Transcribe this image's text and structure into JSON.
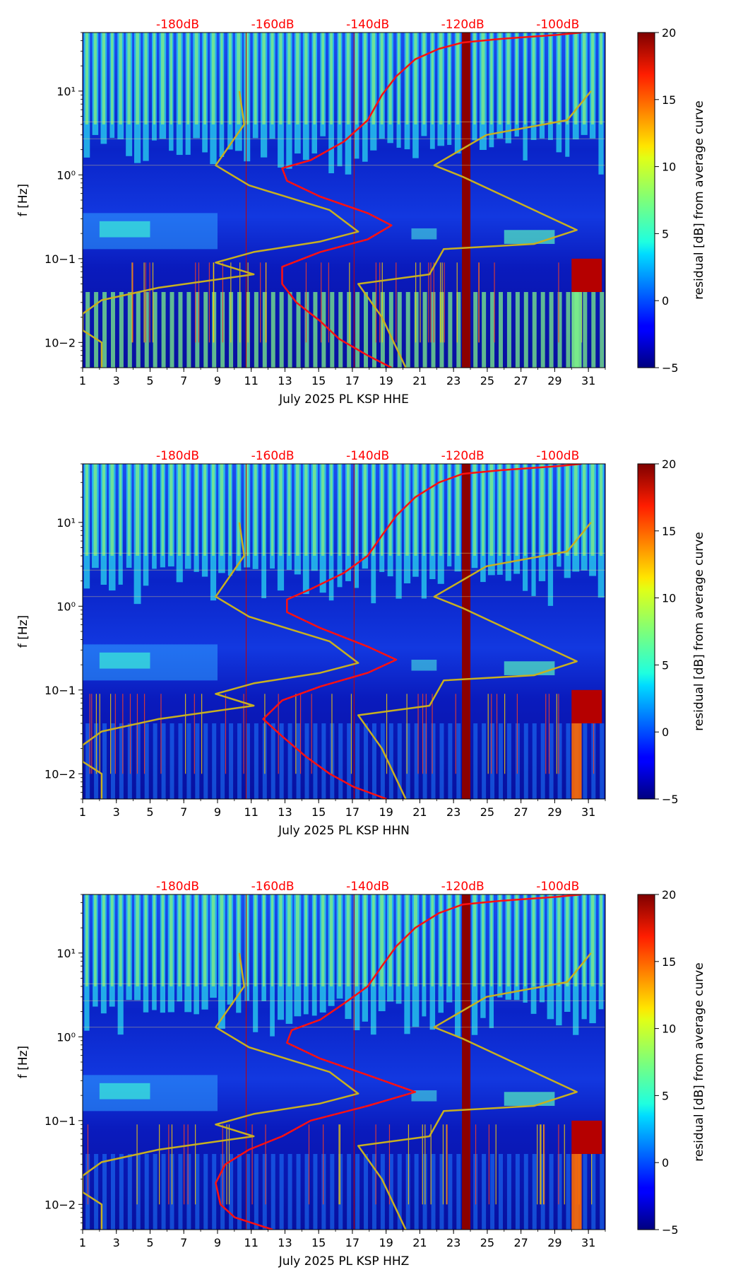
{
  "chart_data": [
    {
      "type": "heatmap",
      "title": "",
      "xlabel": "July 2025 PL KSP  HHE",
      "ylabel": "f [Hz]",
      "x_ticks": [
        1,
        3,
        5,
        7,
        9,
        11,
        13,
        15,
        17,
        19,
        21,
        23,
        25,
        27,
        29,
        31
      ],
      "y_ticks": [
        "10−2",
        "10−1",
        "10⁰",
        "10¹"
      ],
      "top_db_labels": [
        "-180dB",
        "-160dB",
        "-140dB",
        "-120dB",
        "-100dB"
      ],
      "colorbar": {
        "label": "residual [dB] from average curve",
        "ticks": [
          -5,
          0,
          5,
          10,
          15,
          20
        ],
        "range": [
          -5,
          20
        ]
      },
      "xlim": [
        1,
        32
      ],
      "ylim_hz": [
        0.005,
        50
      ],
      "red_curve": [
        [
          -95,
          50
        ],
        [
          -100,
          47
        ],
        [
          -112,
          42
        ],
        [
          -120,
          38
        ],
        [
          -125,
          32
        ],
        [
          -130,
          24
        ],
        [
          -134,
          15
        ],
        [
          -137,
          9
        ],
        [
          -140,
          4.5
        ],
        [
          -145,
          2.5
        ],
        [
          -152,
          1.5
        ],
        [
          -158,
          1.2
        ],
        [
          -157,
          0.85
        ],
        [
          -150,
          0.55
        ],
        [
          -140,
          0.35
        ],
        [
          -135,
          0.25
        ],
        [
          -140,
          0.17
        ],
        [
          -150,
          0.12
        ],
        [
          -158,
          0.08
        ],
        [
          -158,
          0.05
        ],
        [
          -155,
          0.03
        ],
        [
          -150,
          0.018
        ],
        [
          -146,
          0.011
        ],
        [
          -140,
          0.007
        ],
        [
          -135,
          0.005
        ]
      ],
      "yellow_curve": [
        [
          -167,
          10
        ],
        [
          -166,
          4
        ],
        [
          -172,
          1.3
        ],
        [
          -165,
          0.75
        ],
        [
          -148,
          0.38
        ],
        [
          -142,
          0.21
        ],
        [
          -150,
          0.16
        ],
        [
          -164,
          0.12
        ],
        [
          -172,
          0.09
        ],
        [
          -164,
          0.065
        ],
        [
          -184,
          0.045
        ],
        [
          -196,
          0.032
        ],
        [
          -200,
          0.022
        ],
        [
          -200,
          0.014
        ],
        [
          -196,
          0.01
        ],
        [
          -196,
          0.005
        ]
      ],
      "yellow_curve_2": [
        [
          -93,
          10
        ],
        [
          -98,
          4.5
        ],
        [
          -115,
          3
        ],
        [
          -126,
          1.3
        ],
        [
          -120,
          0.95
        ],
        [
          -96,
          0.22
        ],
        [
          -105,
          0.15
        ],
        [
          -124,
          0.13
        ],
        [
          -127,
          0.065
        ],
        [
          -142,
          0.05
        ],
        [
          -137,
          0.02
        ],
        [
          -132,
          0.005
        ]
      ]
    },
    {
      "type": "heatmap",
      "title": "",
      "xlabel": "July 2025 PL KSP  HHN",
      "ylabel": "f [Hz]",
      "x_ticks": [
        1,
        3,
        5,
        7,
        9,
        11,
        13,
        15,
        17,
        19,
        21,
        23,
        25,
        27,
        29,
        31
      ],
      "y_ticks": [
        "10−2",
        "10−1",
        "10⁰",
        "10¹"
      ],
      "top_db_labels": [
        "-180dB",
        "-160dB",
        "-140dB",
        "-120dB",
        "-100dB"
      ],
      "colorbar": {
        "label": "residual [dB] from average curve",
        "ticks": [
          -5,
          0,
          5,
          10,
          15,
          20
        ],
        "range": [
          -5,
          20
        ]
      },
      "xlim": [
        1,
        32
      ],
      "ylim_hz": [
        0.005,
        50
      ],
      "red_curve": [
        [
          -95,
          50
        ],
        [
          -100,
          47
        ],
        [
          -112,
          42
        ],
        [
          -120,
          38
        ],
        [
          -125,
          30
        ],
        [
          -130,
          20
        ],
        [
          -134,
          12
        ],
        [
          -137,
          7
        ],
        [
          -140,
          4
        ],
        [
          -145,
          2.5
        ],
        [
          -152,
          1.6
        ],
        [
          -157,
          1.2
        ],
        [
          -157,
          0.85
        ],
        [
          -150,
          0.55
        ],
        [
          -140,
          0.33
        ],
        [
          -134,
          0.23
        ],
        [
          -140,
          0.16
        ],
        [
          -150,
          0.11
        ],
        [
          -158,
          0.075
        ],
        [
          -162,
          0.045
        ],
        [
          -158,
          0.028
        ],
        [
          -153,
          0.016
        ],
        [
          -148,
          0.01
        ],
        [
          -143,
          0.007
        ],
        [
          -136,
          0.005
        ]
      ],
      "yellow_curve": [
        [
          -167,
          10
        ],
        [
          -166,
          4
        ],
        [
          -172,
          1.3
        ],
        [
          -165,
          0.75
        ],
        [
          -148,
          0.38
        ],
        [
          -142,
          0.21
        ],
        [
          -150,
          0.16
        ],
        [
          -164,
          0.12
        ],
        [
          -172,
          0.09
        ],
        [
          -164,
          0.065
        ],
        [
          -184,
          0.045
        ],
        [
          -196,
          0.032
        ],
        [
          -200,
          0.022
        ],
        [
          -200,
          0.014
        ],
        [
          -196,
          0.01
        ],
        [
          -196,
          0.005
        ]
      ],
      "yellow_curve_2": [
        [
          -93,
          10
        ],
        [
          -98,
          4.5
        ],
        [
          -115,
          3
        ],
        [
          -126,
          1.3
        ],
        [
          -120,
          0.95
        ],
        [
          -96,
          0.22
        ],
        [
          -105,
          0.15
        ],
        [
          -124,
          0.13
        ],
        [
          -127,
          0.065
        ],
        [
          -142,
          0.05
        ],
        [
          -137,
          0.02
        ],
        [
          -132,
          0.005
        ]
      ]
    },
    {
      "type": "heatmap",
      "title": "",
      "xlabel": "July 2025 PL KSP  HHZ",
      "ylabel": "f [Hz]",
      "x_ticks": [
        1,
        3,
        5,
        7,
        9,
        11,
        13,
        15,
        17,
        19,
        21,
        23,
        25,
        27,
        29,
        31
      ],
      "y_ticks": [
        "10−2",
        "10−1",
        "10⁰",
        "10¹"
      ],
      "top_db_labels": [
        "-180dB",
        "-160dB",
        "-140dB",
        "-120dB",
        "-100dB"
      ],
      "colorbar": {
        "label": "residual [dB] from average curve",
        "ticks": [
          -5,
          0,
          5,
          10,
          15,
          20
        ],
        "range": [
          -5,
          20
        ]
      },
      "xlim": [
        1,
        32
      ],
      "ylim_hz": [
        0.005,
        50
      ],
      "red_curve": [
        [
          -95,
          50
        ],
        [
          -100,
          47
        ],
        [
          -112,
          42
        ],
        [
          -120,
          38
        ],
        [
          -125,
          30
        ],
        [
          -130,
          20
        ],
        [
          -134,
          12
        ],
        [
          -137,
          7
        ],
        [
          -140,
          4
        ],
        [
          -145,
          2.5
        ],
        [
          -150,
          1.6
        ],
        [
          -156,
          1.2
        ],
        [
          -157,
          0.85
        ],
        [
          -150,
          0.55
        ],
        [
          -140,
          0.35
        ],
        [
          -130,
          0.22
        ],
        [
          -140,
          0.15
        ],
        [
          -152,
          0.1
        ],
        [
          -158,
          0.065
        ],
        [
          -165,
          0.045
        ],
        [
          -170,
          0.03
        ],
        [
          -172,
          0.018
        ],
        [
          -171,
          0.01
        ],
        [
          -168,
          0.007
        ],
        [
          -160,
          0.005
        ]
      ],
      "yellow_curve": [
        [
          -167,
          10
        ],
        [
          -166,
          4
        ],
        [
          -172,
          1.3
        ],
        [
          -165,
          0.75
        ],
        [
          -148,
          0.38
        ],
        [
          -142,
          0.21
        ],
        [
          -150,
          0.16
        ],
        [
          -164,
          0.12
        ],
        [
          -172,
          0.09
        ],
        [
          -164,
          0.065
        ],
        [
          -184,
          0.045
        ],
        [
          -196,
          0.032
        ],
        [
          -200,
          0.022
        ],
        [
          -200,
          0.014
        ],
        [
          -196,
          0.01
        ],
        [
          -196,
          0.005
        ]
      ],
      "yellow_curve_2": [
        [
          -93,
          10
        ],
        [
          -98,
          4.5
        ],
        [
          -115,
          3
        ],
        [
          -126,
          1.3
        ],
        [
          -120,
          0.95
        ],
        [
          -96,
          0.22
        ],
        [
          -105,
          0.15
        ],
        [
          -124,
          0.13
        ],
        [
          -127,
          0.065
        ],
        [
          -142,
          0.05
        ],
        [
          -137,
          0.02
        ],
        [
          -132,
          0.005
        ]
      ]
    }
  ],
  "db_axis": {
    "values": [
      -180,
      -160,
      -140,
      -120,
      -100
    ]
  }
}
